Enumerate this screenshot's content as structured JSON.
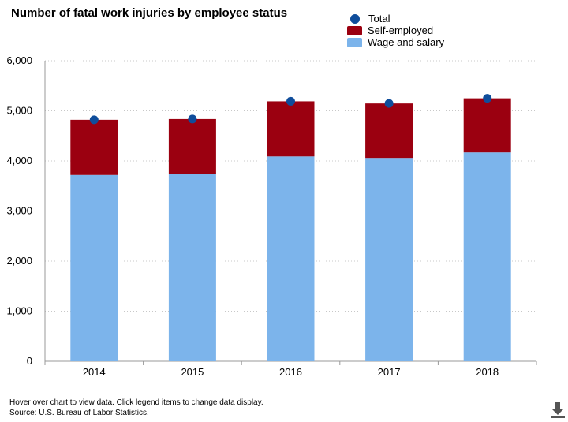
{
  "chart_data": {
    "type": "bar",
    "stacked": true,
    "title": "Number of fatal work injuries by employee status",
    "categories": [
      "2014",
      "2015",
      "2016",
      "2017",
      "2018"
    ],
    "series": [
      {
        "name": "Wage and salary",
        "kind": "bar",
        "color": "#7cb4eb",
        "values": [
          3720,
          3740,
          4090,
          4060,
          4170
        ]
      },
      {
        "name": "Self-employed",
        "kind": "bar",
        "color": "#9b0010",
        "values": [
          1101,
          1096,
          1100,
          1087,
          1080
        ]
      },
      {
        "name": "Total",
        "kind": "point",
        "color": "#0f4d9b",
        "values": [
          4821,
          4836,
          5190,
          5147,
          5250
        ]
      }
    ],
    "yticks": [
      "0",
      "1,000",
      "2,000",
      "3,000",
      "4,000",
      "5,000",
      "6,000"
    ],
    "ylim": [
      0,
      6000
    ],
    "grid": true,
    "legend_position": "top-right"
  },
  "footer": {
    "line1": "Hover over chart to view data. Click legend items to change data display.",
    "line2": "Source: U.S. Bureau of Labor Statistics."
  },
  "icons": {
    "download": "download-icon"
  }
}
